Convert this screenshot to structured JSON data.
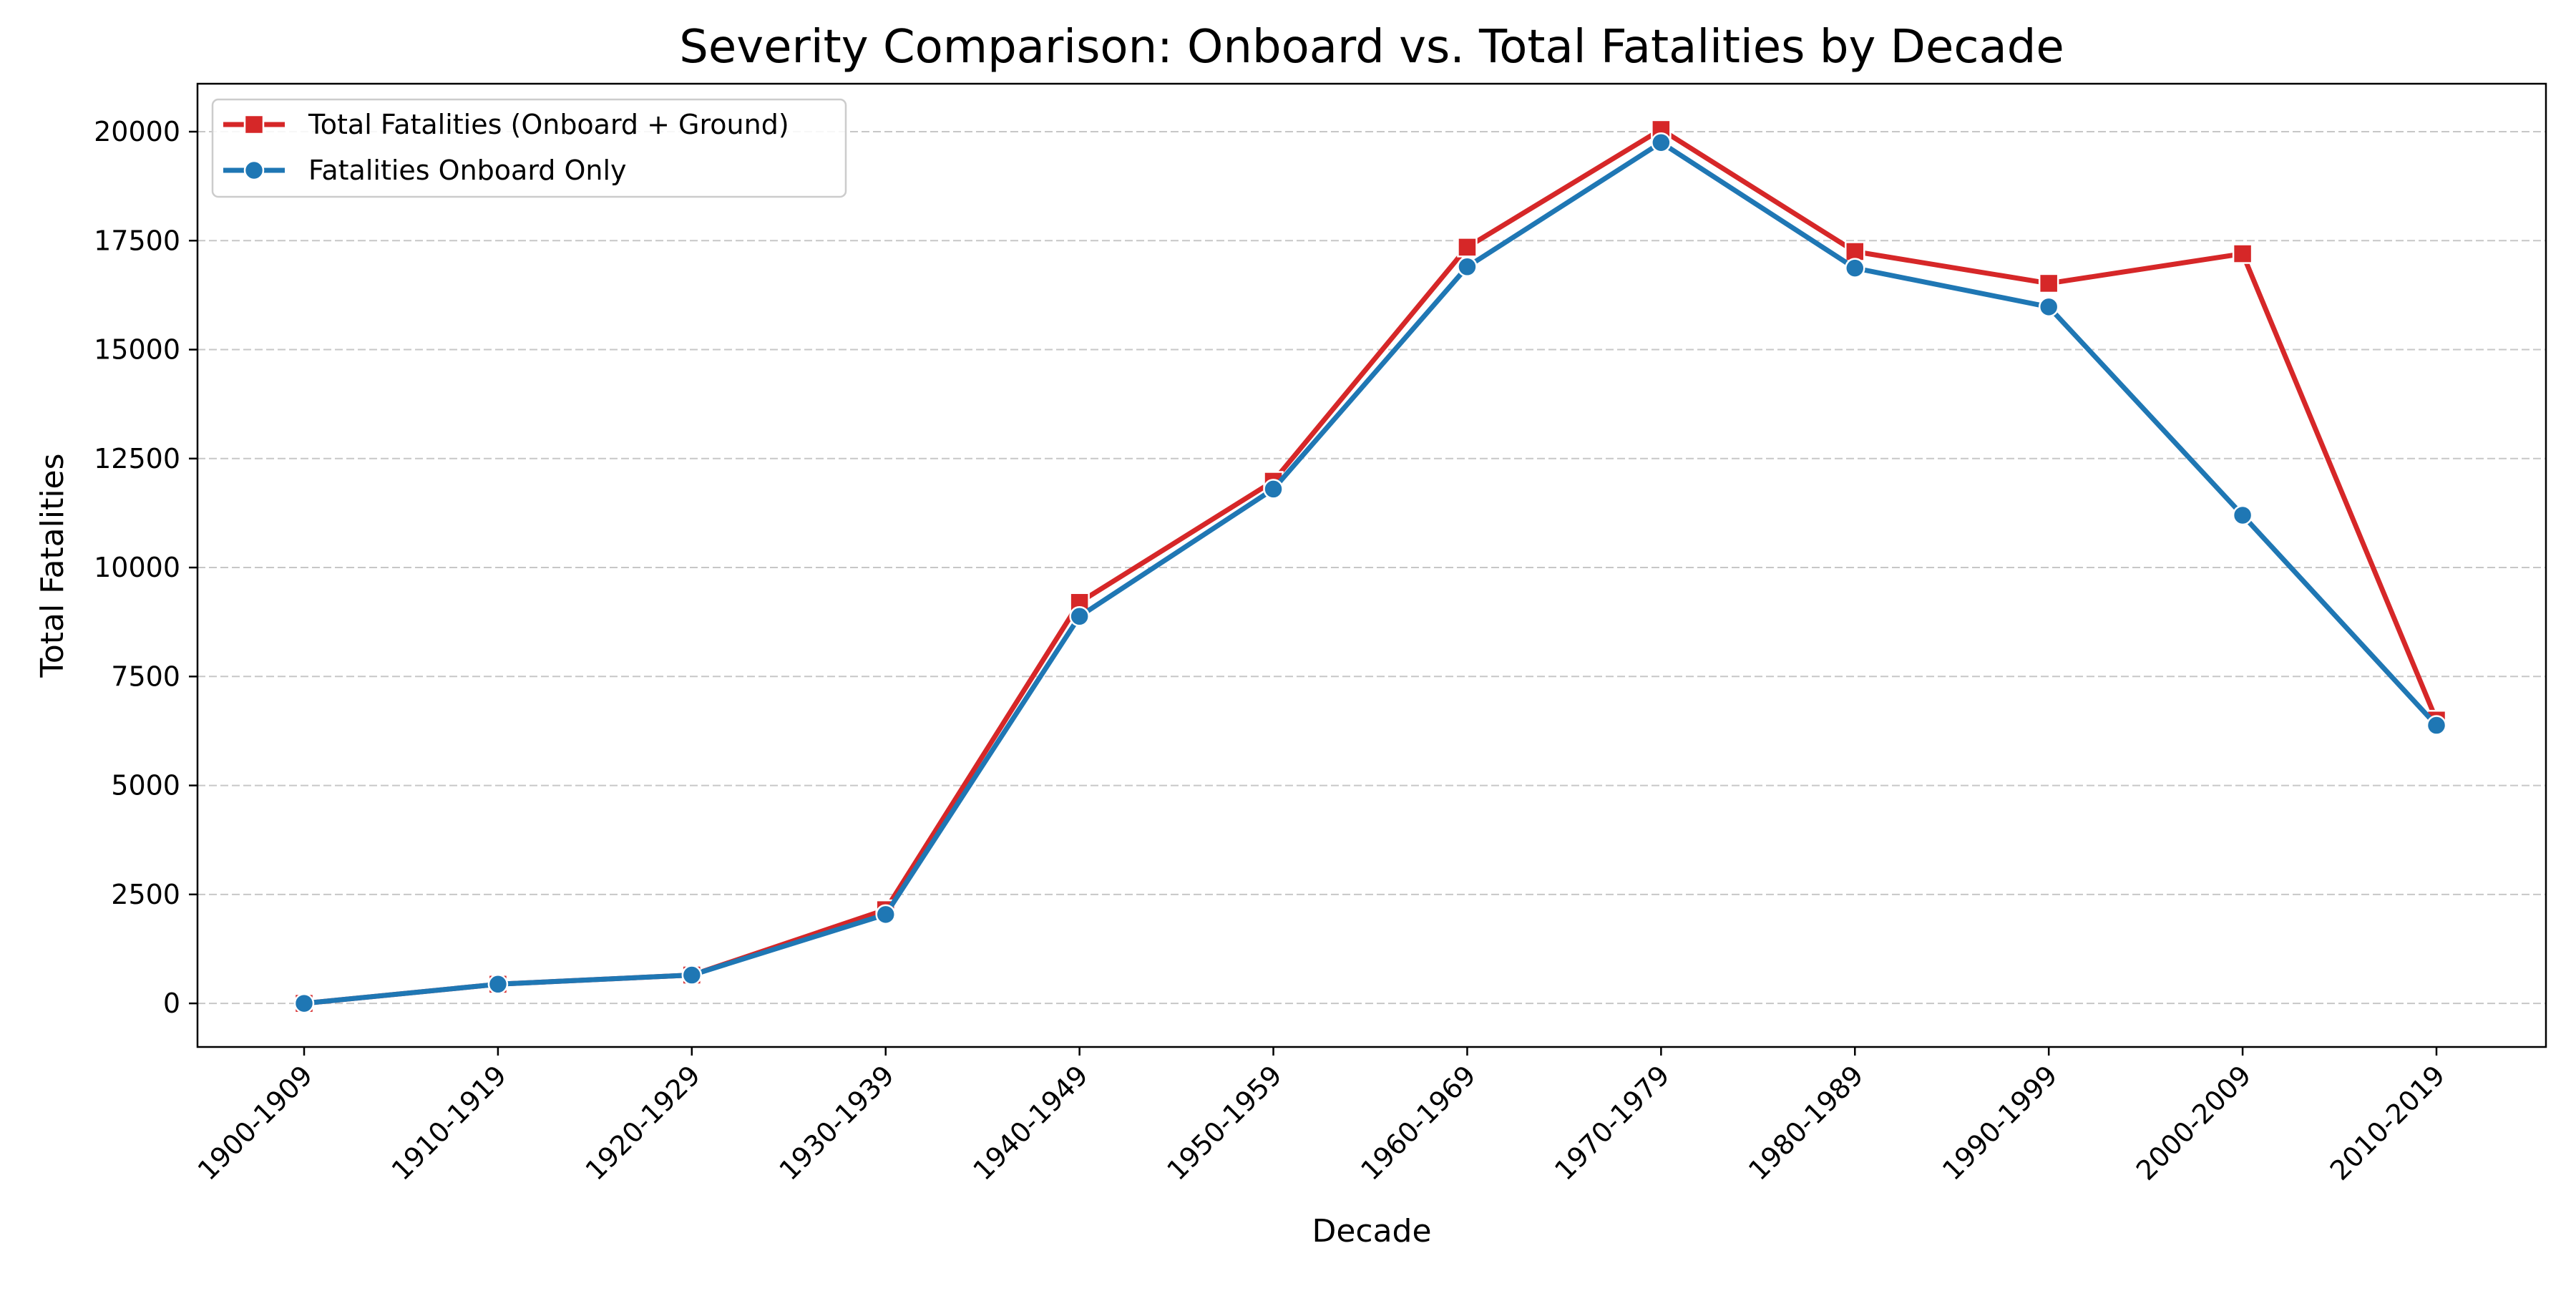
{
  "chart_data": {
    "type": "line",
    "title": "Severity Comparison: Onboard vs. Total Fatalities by Decade",
    "xlabel": "Decade",
    "ylabel": "Total Fatalities",
    "categories": [
      "1900-1909",
      "1910-1919",
      "1920-1929",
      "1930-1939",
      "1940-1949",
      "1950-1959",
      "1960-1969",
      "1970-1979",
      "1980-1989",
      "1990-1999",
      "2000-2009",
      "2010-2019"
    ],
    "yticks": [
      0,
      2500,
      5000,
      7500,
      10000,
      12500,
      15000,
      17500,
      20000
    ],
    "ylim": [
      -1000,
      21100
    ],
    "grid": "horizontal dashed",
    "legend_position": "top-left",
    "series": [
      {
        "name": "Total Fatalities (Onboard + Ground)",
        "color": "#d62728",
        "marker": "square",
        "values": [
          0,
          440,
          650,
          2150,
          9200,
          11980,
          17350,
          20050,
          17250,
          16520,
          17200,
          6500
        ]
      },
      {
        "name": "Fatalities Onboard Only",
        "color": "#1f77b4",
        "marker": "circle",
        "values": [
          0,
          440,
          650,
          2040,
          8880,
          11800,
          16900,
          19750,
          16870,
          15980,
          11200,
          6380
        ]
      }
    ]
  }
}
